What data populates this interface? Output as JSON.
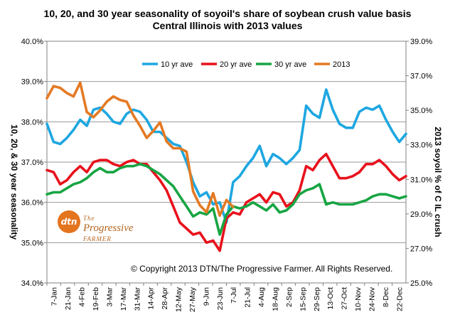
{
  "chart_data": {
    "type": "line",
    "title_lines": [
      "10, 20, and 30 year seasonality of soyoil's share of soybean crush value basis",
      "Central Illinois with 2013 values"
    ],
    "ylabel_left": "10, 20, & 30 year seasonality",
    "ylabel_right": "2013 soyoil % of C IL crush",
    "left_axis": {
      "min": 34.0,
      "max": 40.0,
      "ticks": [
        34.0,
        35.0,
        36.0,
        37.0,
        38.0,
        39.0,
        40.0
      ],
      "tick_labels": [
        "34.0%",
        "35.0%",
        "36.0%",
        "37.0%",
        "38.0%",
        "39.0%",
        "40.0%"
      ]
    },
    "right_axis": {
      "min": 25.0,
      "max": 39.0,
      "ticks": [
        25.0,
        27.0,
        29.0,
        31.0,
        33.0,
        35.0,
        37.0,
        39.0
      ],
      "tick_labels": [
        "25.0%",
        "27.0%",
        "29.0%",
        "31.0%",
        "33.0%",
        "35.0%",
        "37.0%",
        "39.0%"
      ]
    },
    "x_labels": [
      "7-Jan",
      "21-Jan",
      "4-Feb",
      "19-Feb",
      "3-Mar",
      "17-Mar",
      "31-Mar",
      "14-Apr",
      "28-Apr",
      "12-May",
      "27-May",
      "9-Jun",
      "23-Jun",
      "7-Jul",
      "21-Jul",
      "4-Aug",
      "18-Aug",
      "2-Sep",
      "15-Sep",
      "29-Sep",
      "13-Oct",
      "27-Oct",
      "10-Nov",
      "24-Nov",
      "8-Dec",
      "22-Dec"
    ],
    "grid": true,
    "legend_position": "top",
    "series": [
      {
        "name": "10 yr ave",
        "color": "#1ea7e1",
        "axis": "left",
        "values": [
          37.95,
          37.5,
          37.45,
          37.6,
          37.8,
          38.05,
          37.9,
          38.3,
          38.35,
          38.2,
          38.0,
          37.95,
          38.2,
          38.3,
          38.25,
          38.05,
          37.75,
          37.75,
          37.6,
          37.45,
          37.4,
          37.0,
          36.5,
          36.15,
          36.25,
          35.95,
          36.0,
          35.5,
          36.5,
          36.65,
          36.9,
          37.1,
          37.4,
          36.9,
          37.2,
          37.1,
          36.95,
          37.1,
          37.3,
          38.4,
          38.2,
          38.1,
          38.8,
          38.3,
          37.95,
          37.85,
          37.85,
          38.25,
          38.35,
          38.3,
          38.4,
          38.05,
          37.75,
          37.5,
          37.7
        ]
      },
      {
        "name": "20 yr ave",
        "color": "#e8111c",
        "axis": "left",
        "values": [
          36.8,
          36.75,
          36.45,
          36.55,
          36.75,
          36.9,
          36.75,
          37.0,
          37.05,
          37.05,
          36.95,
          36.9,
          37.0,
          37.05,
          36.95,
          36.95,
          36.75,
          36.55,
          36.3,
          35.9,
          35.5,
          35.35,
          35.2,
          35.25,
          35.0,
          35.05,
          34.8,
          35.6,
          35.75,
          35.7,
          36.0,
          36.1,
          36.2,
          36.0,
          36.25,
          36.2,
          35.9,
          36.0,
          36.3,
          36.9,
          36.8,
          37.05,
          37.2,
          36.9,
          36.6,
          36.6,
          36.65,
          36.75,
          36.95,
          36.95,
          37.05,
          36.9,
          36.7,
          36.55,
          36.65
        ]
      },
      {
        "name": "30 yr ave",
        "color": "#17a543",
        "axis": "left",
        "values": [
          36.2,
          36.25,
          36.25,
          36.35,
          36.45,
          36.5,
          36.6,
          36.75,
          36.85,
          36.75,
          36.75,
          36.85,
          36.9,
          36.9,
          36.95,
          36.9,
          36.8,
          36.7,
          36.55,
          36.4,
          36.15,
          35.9,
          35.65,
          35.75,
          35.7,
          35.85,
          35.2,
          35.7,
          35.9,
          35.85,
          35.9,
          36.0,
          35.9,
          35.8,
          35.95,
          35.75,
          35.8,
          35.95,
          36.2,
          36.3,
          36.35,
          36.45,
          35.95,
          36.0,
          35.95,
          35.95,
          35.95,
          36.0,
          36.05,
          36.15,
          36.2,
          36.2,
          36.15,
          36.1,
          36.15
        ]
      },
      {
        "name": "2013",
        "color": "#e47a23",
        "axis": "right",
        "values": [
          35.7,
          36.4,
          36.3,
          36.0,
          35.8,
          36.6,
          34.9,
          34.6,
          35.0,
          35.5,
          35.8,
          35.6,
          35.5,
          34.7,
          34.1,
          33.4,
          33.8,
          34.3,
          33.2,
          32.8,
          32.8,
          32.6,
          30.3,
          29.5,
          29.1,
          30.2,
          28.9,
          29.8,
          29.4
        ]
      }
    ]
  },
  "logo": {
    "badge": "dtn",
    "brand_line1": "The",
    "brand_line2": "Progressive",
    "brand_line3": "FARMER"
  },
  "copyright": "© Copyright 2013 DTN/The Progressive Farmer. All Rights Reserved."
}
